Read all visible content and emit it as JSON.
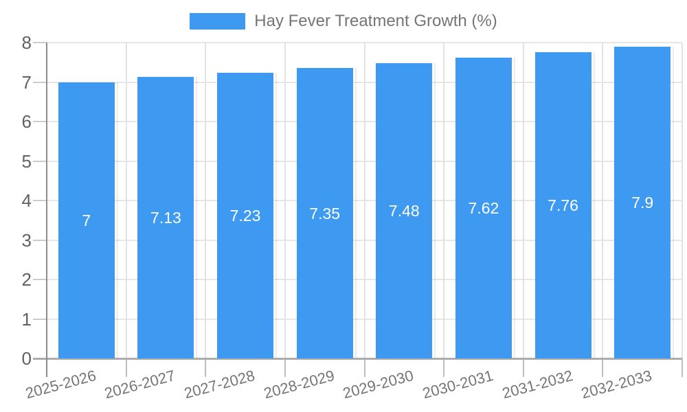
{
  "chart_data": {
    "type": "bar",
    "title": "Hay Fever Treatment Growth (%)",
    "categories": [
      "2025-2026",
      "2026-2027",
      "2027-2028",
      "2028-2029",
      "2029-2030",
      "2030-2031",
      "2031-2032",
      "2032-2033"
    ],
    "values": [
      7,
      7.13,
      7.23,
      7.35,
      7.48,
      7.62,
      7.76,
      7.9
    ],
    "value_labels": [
      "7",
      "7.13",
      "7.23",
      "7.35",
      "7.48",
      "7.62",
      "7.76",
      "7.9"
    ],
    "yticks": [
      "0",
      "1",
      "2",
      "3",
      "4",
      "5",
      "6",
      "7",
      "8"
    ],
    "ylim": [
      0,
      8
    ],
    "xlabel": "",
    "ylabel": "",
    "grid": "on",
    "legend_position": "top-center",
    "colors": {
      "bar": "#3D9AF0",
      "grid_h": "#E6E6E6",
      "grid_v": "#E2E2E2",
      "tick": "#BDBDBD",
      "stub": "#CCCCCC",
      "axis": "#8C8C8C",
      "baseline": "#ADADAD",
      "y_label": "#616161",
      "x_label": "#757575",
      "legend_text": "#757575",
      "value_label": "#FFFFFF"
    }
  }
}
